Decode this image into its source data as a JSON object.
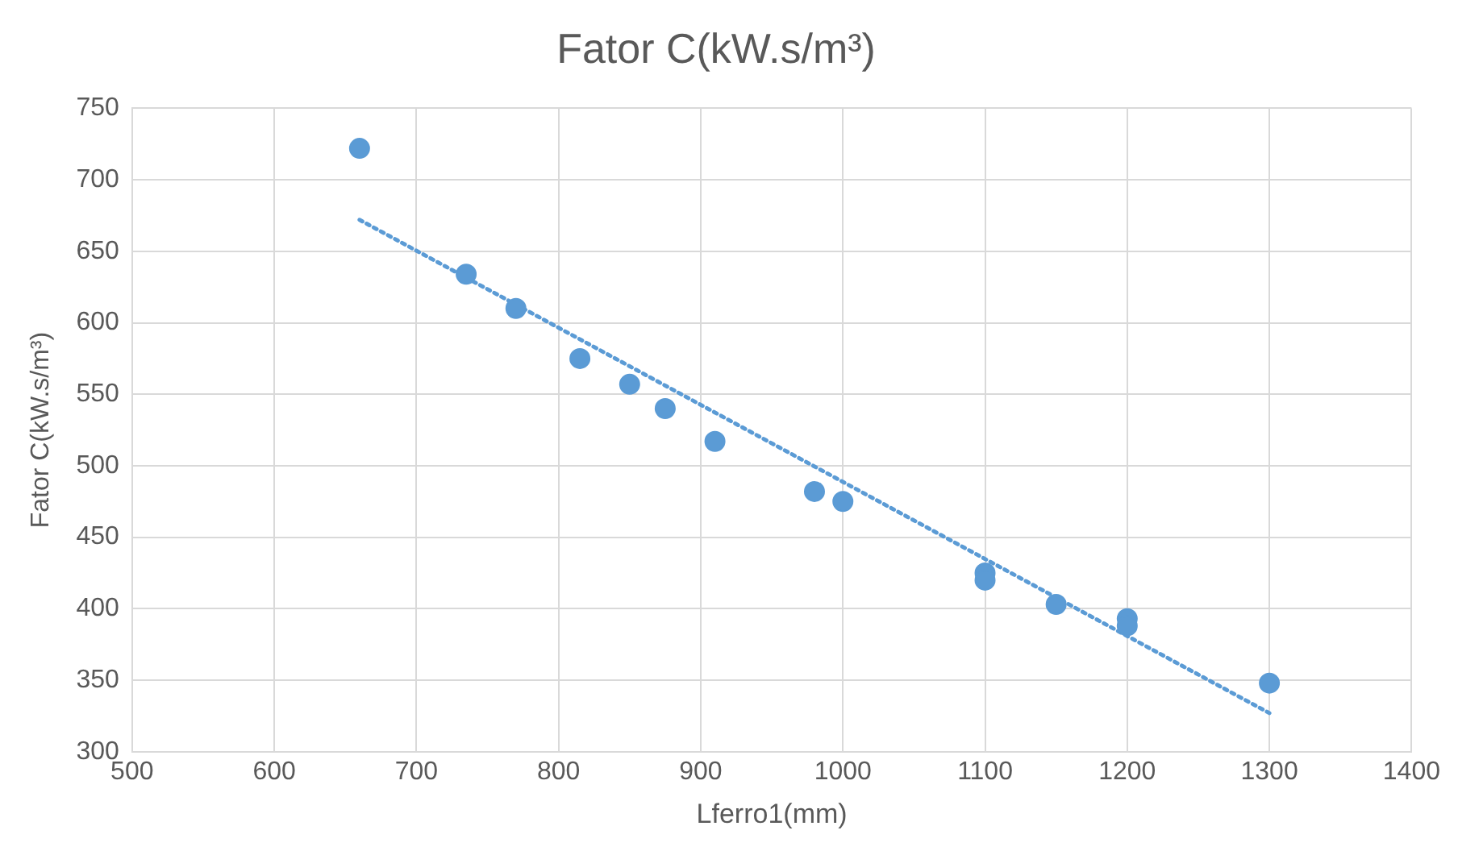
{
  "chart_data": {
    "type": "scatter",
    "title": "Fator C(kW.s/m³)",
    "xlabel": "Lferro1(mm)",
    "ylabel": "Fator C(kW.s/m³)",
    "series": [
      {
        "color": "#5b9bd5",
        "marker": "circle",
        "x": [
          660,
          735,
          770,
          815,
          850,
          875,
          910,
          980,
          1000,
          1100,
          1100,
          1150,
          1200,
          1200,
          1300
        ],
        "values": [
          722,
          634,
          610,
          575,
          557,
          540,
          517,
          482,
          475,
          425,
          420,
          403,
          393,
          388,
          348
        ]
      },
      {
        "type": "line",
        "color": "#5b9bd5",
        "line_style": "dotted",
        "marker": "none",
        "x": [
          660,
          1300
        ],
        "values": [
          672,
          327
        ]
      }
    ],
    "xlim": [
      500,
      1400
    ],
    "xticks": [
      500,
      600,
      700,
      800,
      900,
      1000,
      1100,
      1200,
      1300,
      1400
    ],
    "ylim": [
      300,
      750
    ],
    "yticks": [
      300,
      350,
      400,
      450,
      500,
      550,
      600,
      650,
      700,
      750
    ],
    "grid": true,
    "legend": false
  }
}
